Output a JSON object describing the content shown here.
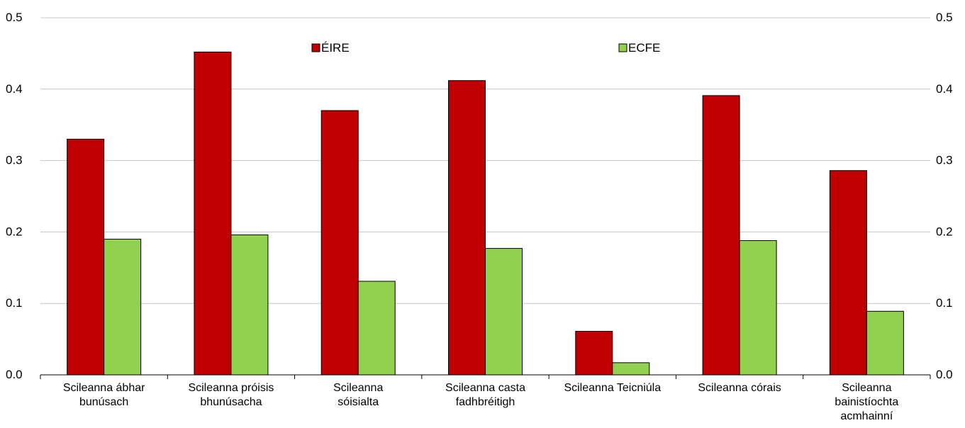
{
  "chart_data": {
    "type": "bar",
    "categories": [
      [
        "Scileanna ábhar",
        "bunúsach"
      ],
      [
        "Scileanna próisis",
        "bhunúsacha"
      ],
      [
        "Scileanna",
        "sóisialta"
      ],
      [
        "Scileanna casta",
        "fadhbréitigh"
      ],
      [
        "Scileanna Teicniúla"
      ],
      [
        "Scileanna córais"
      ],
      [
        "Scileanna",
        "bainistíochta",
        "acmhainní"
      ]
    ],
    "series": [
      {
        "name": "ÉIRE",
        "color": "#c00000",
        "values": [
          0.33,
          0.452,
          0.37,
          0.412,
          0.061,
          0.391,
          0.286
        ]
      },
      {
        "name": "ECFE",
        "color": "#92d050",
        "values": [
          0.19,
          0.196,
          0.131,
          0.177,
          0.017,
          0.188,
          0.089
        ]
      }
    ],
    "ylim": [
      0,
      0.5
    ],
    "yticks": [
      "0.0",
      "0.1",
      "0.2",
      "0.3",
      "0.4",
      "0.5"
    ],
    "grid": true,
    "legend_position": "top-center"
  }
}
